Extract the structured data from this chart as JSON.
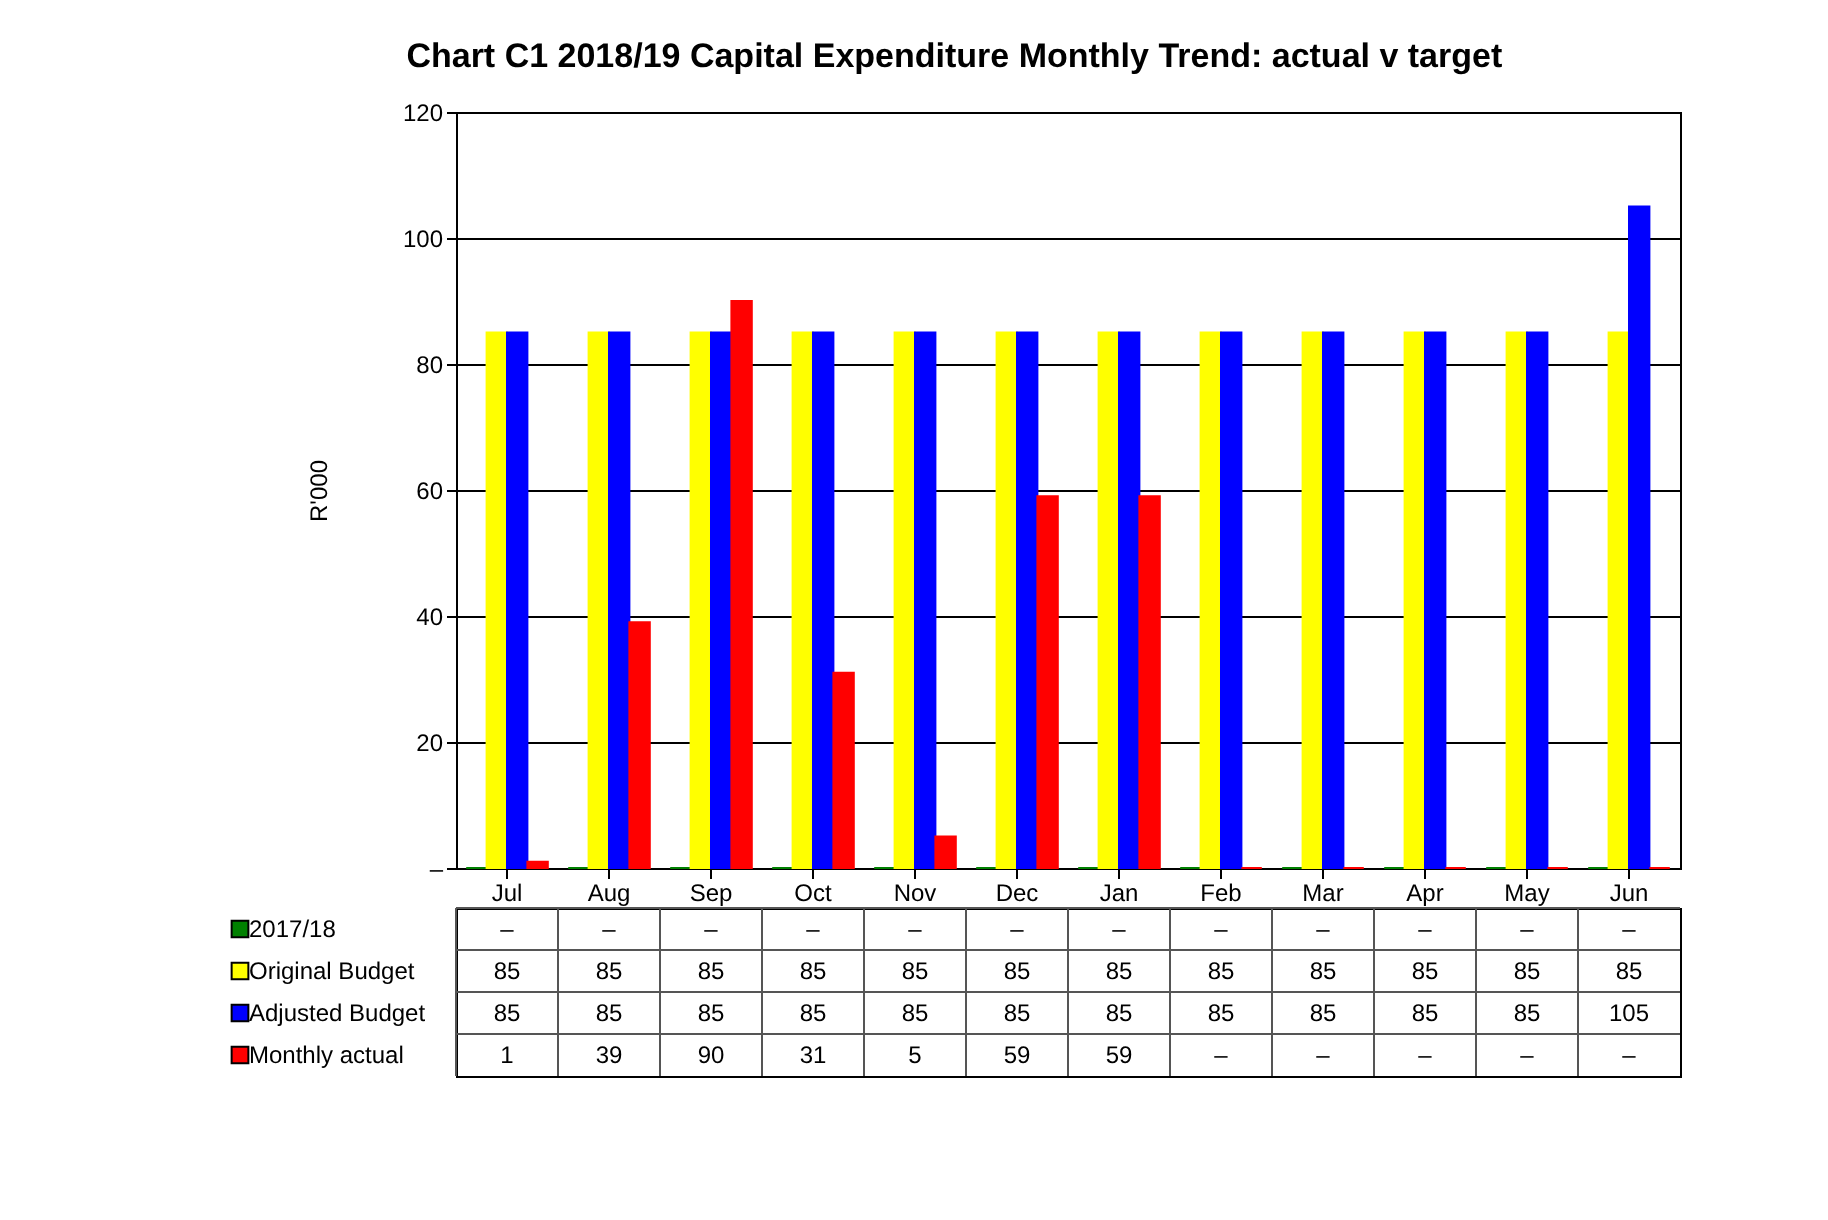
{
  "chart_data": {
    "type": "bar",
    "title": "Chart C1 2018/19  Capital Expenditure Monthly Trend: actual v target",
    "ylabel": "R'000",
    "categories": [
      "Jul",
      "Aug",
      "Sep",
      "Oct",
      "Nov",
      "Dec",
      "Jan",
      "Feb",
      "Mar",
      "Apr",
      "May",
      "Jun"
    ],
    "series": [
      {
        "name": "2017/18",
        "color": "#008000",
        "values": [
          0,
          0,
          0,
          0,
          0,
          0,
          0,
          0,
          0,
          0,
          0,
          0
        ],
        "value_labels": [
          "–",
          "–",
          "–",
          "–",
          "–",
          "–",
          "–",
          "–",
          "–",
          "–",
          "–",
          "–"
        ]
      },
      {
        "name": "Original Budget",
        "color": "#ffff00",
        "values": [
          85,
          85,
          85,
          85,
          85,
          85,
          85,
          85,
          85,
          85,
          85,
          85
        ],
        "value_labels": [
          "85",
          "85",
          "85",
          "85",
          "85",
          "85",
          "85",
          "85",
          "85",
          "85",
          "85",
          "85"
        ]
      },
      {
        "name": "Adjusted Budget",
        "color": "#0000ff",
        "values": [
          85,
          85,
          85,
          85,
          85,
          85,
          85,
          85,
          85,
          85,
          85,
          105
        ],
        "value_labels": [
          "85",
          "85",
          "85",
          "85",
          "85",
          "85",
          "85",
          "85",
          "85",
          "85",
          "85",
          "105"
        ]
      },
      {
        "name": "Monthly actual",
        "color": "#ff0000",
        "values": [
          1,
          39,
          90,
          31,
          5,
          59,
          59,
          0,
          0,
          0,
          0,
          0
        ],
        "value_labels": [
          "1",
          "39",
          "90",
          "31",
          "5",
          "59",
          "59",
          "–",
          "–",
          "–",
          "–",
          "–"
        ]
      }
    ],
    "ylim": [
      0,
      120
    ],
    "yticks": [
      {
        "value": 0,
        "label": "–"
      },
      20,
      40,
      60,
      80,
      100,
      120
    ],
    "grid": "y",
    "legend": "bottom"
  }
}
